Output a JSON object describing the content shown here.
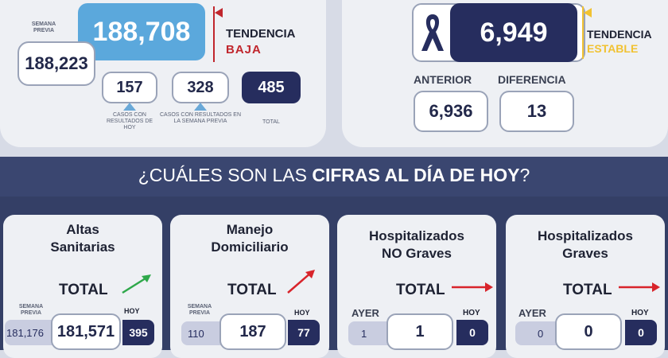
{
  "top_left": {
    "semana_previa_label": "SEMANA PREVIA",
    "main_value": "188,708",
    "previous_value": "188,223",
    "tendencia_label": "TENDENCIA",
    "tendencia_value": "BAJA",
    "stats": [
      {
        "value": "157",
        "caption": "CASOS CON RESULTADOS DE HOY"
      },
      {
        "value": "328",
        "caption": "CASOS CON RESULTADOS EN LA SEMANA PREVIA"
      },
      {
        "value": "485",
        "caption": "TOTAL"
      }
    ]
  },
  "top_right": {
    "main_value": "6,949",
    "tendencia_label": "TENDENCIA",
    "tendencia_value": "ESTABLE",
    "anterior_label": "ANTERIOR",
    "anterior_value": "6,936",
    "diferencia_label": "DIFERENCIA",
    "diferencia_value": "13"
  },
  "banner": {
    "prefix": "¿CUÁLES SON LAS ",
    "highlight": "CIFRAS AL DÍA DE HOY",
    "suffix": "?"
  },
  "cards": [
    {
      "title_line1": "Altas",
      "title_line2": "Sanitarias",
      "total_label": "TOTAL",
      "left_label": "SEMANA PREVIA",
      "right_label": "HOY",
      "left_value": "181,176",
      "center_value": "181,571",
      "right_value": "395"
    },
    {
      "title_line1": "Manejo",
      "title_line2": "Domiciliario",
      "total_label": "TOTAL",
      "left_label": "SEMANA PREVIA",
      "right_label": "HOY",
      "left_value": "110",
      "center_value": "187",
      "right_value": "77"
    },
    {
      "title_line1": "Hospitalizados",
      "title_line2": "NO Graves",
      "total_label": "TOTAL",
      "left_label": "AYER",
      "right_label": "HOY",
      "left_value": "1",
      "center_value": "1",
      "right_value": "0"
    },
    {
      "title_line1": "Hospitalizados",
      "title_line2": "Graves",
      "total_label": "TOTAL",
      "left_label": "AYER",
      "right_label": "HOY",
      "left_value": "0",
      "center_value": "0",
      "right_value": "0"
    }
  ],
  "colors": {
    "accent_blue": "#5ba8dc",
    "navy": "#262d5e",
    "trend_down_red": "#c0262d",
    "trend_stable_yellow": "#f1c232",
    "arrow_green": "#2ea84a",
    "arrow_red": "#d8242b"
  },
  "icons": {
    "mourning_ribbon": "ribbon-icon"
  }
}
